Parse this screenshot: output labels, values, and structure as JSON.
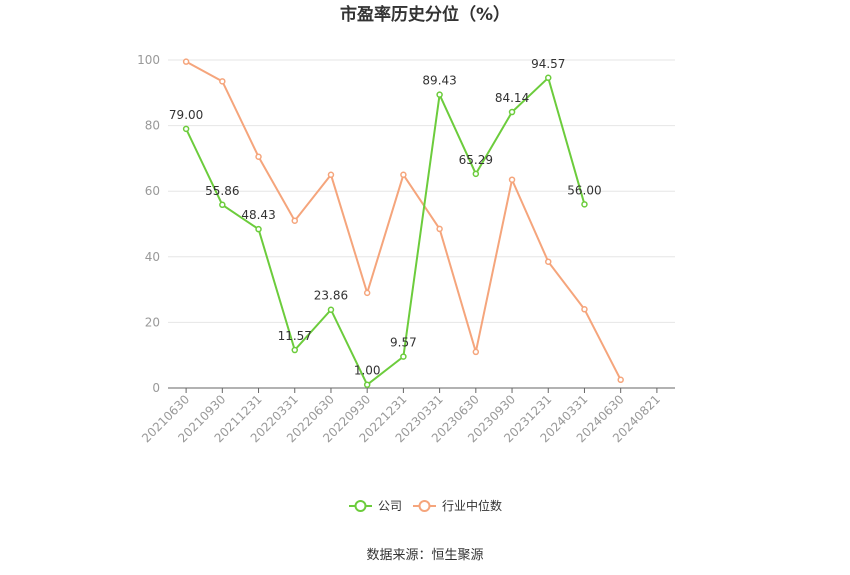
{
  "chart_data": {
    "type": "line",
    "title": "市盈率历史分位（%）",
    "categories": [
      "20210630",
      "20210930",
      "20211231",
      "20220331",
      "20220630",
      "20220930",
      "20221231",
      "20230331",
      "20230630",
      "20230930",
      "20231231",
      "20240331",
      "20240630",
      "20240821"
    ],
    "ylim": [
      0,
      100
    ],
    "yticks": [
      0,
      20,
      40,
      60,
      80,
      100
    ],
    "grid": true,
    "legend_position": "bottom",
    "series": [
      {
        "name": "公司",
        "color": "#6ccc3c",
        "values": [
          79.0,
          55.86,
          48.43,
          11.57,
          23.86,
          1.0,
          9.57,
          89.43,
          65.29,
          84.14,
          94.57,
          56.0,
          null,
          null
        ],
        "labels": [
          "79.00",
          "55.86",
          "48.43",
          "11.57",
          "23.86",
          "1.00",
          "9.57",
          "89.43",
          "65.29",
          "84.14",
          "94.57",
          "56.00",
          "",
          ""
        ]
      },
      {
        "name": "行业中位数",
        "color": "#f5a57c",
        "values": [
          99.5,
          93.5,
          70.5,
          51,
          65,
          29,
          65,
          48.5,
          11,
          63.5,
          38.5,
          24,
          2.5,
          null
        ]
      }
    ]
  },
  "source": "数据来源：恒生聚源"
}
